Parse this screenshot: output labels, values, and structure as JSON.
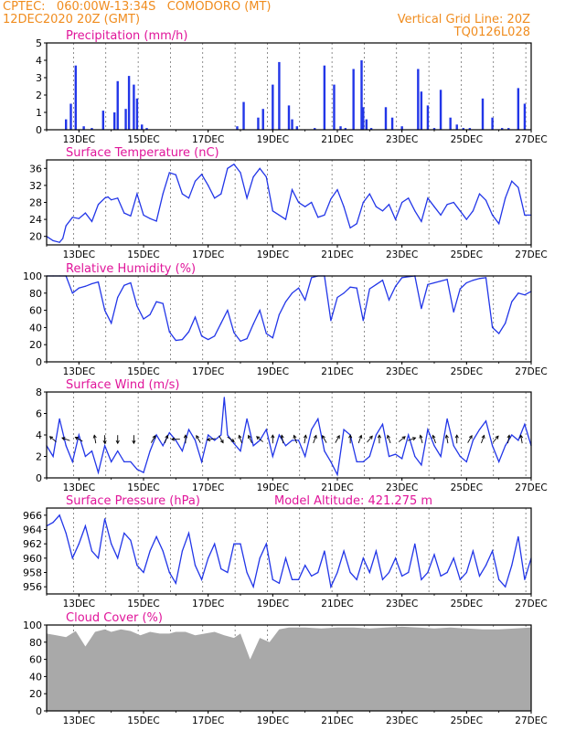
{
  "header": {
    "line1": "CPTEC:   060:00W-13:34S   COMODORO (MT)",
    "line2": "12DEC2020 20Z (GMT)",
    "right1": "Vertical Grid Line: 20Z",
    "right2": "TQ0126L028"
  },
  "colors": {
    "header": "#f08c1e",
    "title": "#e0159a",
    "series": "#2236e8",
    "cloud": "#a9a9a9",
    "axis": "#000000"
  },
  "chart_data": [
    {
      "type": "bar",
      "title": "Precipitation (mm/h)",
      "ylim": [
        0,
        5
      ],
      "yticks": [
        "0",
        "1",
        "2",
        "3",
        "4",
        "5"
      ],
      "xticks": [
        "13DEC",
        "15DEC",
        "17DEC",
        "19DEC",
        "21DEC",
        "23DEC",
        "25DEC",
        "27DEC"
      ],
      "x_unit": "day of Dec 2020 (20Z)",
      "x": [
        12.6,
        12.75,
        12.9,
        13.15,
        13.4,
        13.75,
        14.1,
        14.2,
        14.45,
        14.55,
        14.7,
        14.8,
        14.95,
        15.1,
        17.9,
        18.1,
        18.55,
        18.7,
        19.0,
        19.2,
        19.5,
        19.6,
        19.75,
        20.3,
        20.6,
        20.9,
        21.1,
        21.25,
        21.5,
        21.75,
        21.8,
        21.9,
        22.05,
        22.5,
        22.7,
        23.0,
        23.5,
        23.6,
        23.8,
        24.0,
        24.2,
        24.5,
        24.7,
        24.9,
        25.1,
        25.5,
        25.8,
        26.1,
        26.3,
        26.6,
        26.8
      ],
      "values": [
        0.6,
        1.5,
        3.7,
        0.2,
        0.1,
        1.1,
        1.0,
        2.8,
        1.2,
        3.1,
        2.6,
        1.8,
        0.3,
        0.1,
        0.2,
        1.6,
        0.7,
        1.2,
        2.6,
        3.9,
        1.4,
        0.6,
        0.2,
        0.1,
        3.7,
        2.6,
        0.2,
        0.1,
        3.5,
        4.0,
        1.3,
        0.6,
        0.1,
        1.3,
        0.7,
        0.2,
        3.5,
        2.2,
        1.4,
        0.1,
        2.3,
        0.7,
        0.3,
        0.1,
        0.1,
        1.8,
        0.7,
        0.1,
        0.1,
        2.4,
        1.5
      ]
    },
    {
      "type": "line",
      "title": "Surface Temperature (nC)",
      "ylim": [
        18,
        38
      ],
      "yticks": [
        "20",
        "24",
        "28",
        "32",
        "36"
      ],
      "xticks": [
        "13DEC",
        "15DEC",
        "17DEC",
        "19DEC",
        "21DEC",
        "23DEC",
        "25DEC",
        "27DEC"
      ],
      "x": [
        12.0,
        12.2,
        12.4,
        12.5,
        12.6,
        12.8,
        13.0,
        13.2,
        13.4,
        13.6,
        13.8,
        13.9,
        14.0,
        14.2,
        14.4,
        14.6,
        14.8,
        15.0,
        15.2,
        15.4,
        15.6,
        15.8,
        16.0,
        16.2,
        16.4,
        16.6,
        16.8,
        17.0,
        17.2,
        17.4,
        17.6,
        17.8,
        18.0,
        18.2,
        18.4,
        18.6,
        18.8,
        19.0,
        19.2,
        19.4,
        19.6,
        19.8,
        20.0,
        20.2,
        20.4,
        20.6,
        20.8,
        21.0,
        21.2,
        21.4,
        21.6,
        21.8,
        22.0,
        22.2,
        22.4,
        22.6,
        22.8,
        23.0,
        23.2,
        23.4,
        23.6,
        23.8,
        24.0,
        24.2,
        24.4,
        24.6,
        24.8,
        25.0,
        25.2,
        25.4,
        25.6,
        25.8,
        26.0,
        26.2,
        26.4,
        26.6,
        26.8,
        27.0
      ],
      "values": [
        20,
        19,
        18.6,
        19.5,
        22.5,
        24.5,
        24.2,
        25.5,
        23.5,
        27.5,
        29,
        29.3,
        28.6,
        29,
        25.5,
        24.8,
        30,
        25,
        24.2,
        23.6,
        30,
        35,
        34.5,
        30,
        29,
        33,
        34.6,
        32,
        29,
        30,
        36,
        37,
        35,
        29,
        34,
        36,
        34,
        26,
        25,
        24,
        31,
        28,
        27,
        28,
        24.5,
        25,
        28.8,
        31,
        27,
        22,
        23,
        28,
        30,
        27,
        26,
        27.5,
        24,
        28,
        29,
        26,
        23.5,
        29,
        27,
        25,
        27.5,
        28,
        26,
        24,
        26,
        30,
        28.5,
        25,
        23,
        29,
        33,
        31.5,
        25,
        25
      ]
    },
    {
      "type": "line",
      "title": "Relative Humidity (%)",
      "ylim": [
        0,
        100
      ],
      "yticks": [
        "0",
        "20",
        "40",
        "60",
        "80",
        "100"
      ],
      "xticks": [
        "13DEC",
        "15DEC",
        "17DEC",
        "19DEC",
        "21DEC",
        "23DEC",
        "25DEC",
        "27DEC"
      ],
      "x": [
        12.0,
        12.2,
        12.4,
        12.6,
        12.8,
        13.0,
        13.2,
        13.4,
        13.6,
        13.8,
        14.0,
        14.2,
        14.4,
        14.6,
        14.8,
        15.0,
        15.2,
        15.4,
        15.6,
        15.8,
        16.0,
        16.2,
        16.4,
        16.6,
        16.8,
        17.0,
        17.2,
        17.4,
        17.6,
        17.8,
        18.0,
        18.2,
        18.4,
        18.6,
        18.8,
        19.0,
        19.2,
        19.4,
        19.6,
        19.8,
        20.0,
        20.2,
        20.4,
        20.6,
        20.8,
        21.0,
        21.2,
        21.4,
        21.6,
        21.8,
        22.0,
        22.2,
        22.4,
        22.6,
        22.8,
        23.0,
        23.2,
        23.4,
        23.6,
        23.8,
        24.0,
        24.2,
        24.4,
        24.6,
        24.8,
        25.0,
        25.2,
        25.4,
        25.6,
        25.8,
        26.0,
        26.2,
        26.4,
        26.6,
        26.8,
        27.0
      ],
      "values": [
        100,
        100,
        100,
        100,
        80,
        86,
        88,
        91,
        93,
        60,
        45,
        75,
        89,
        92,
        65,
        50,
        55,
        70,
        68,
        35,
        25,
        26,
        35,
        52,
        30,
        26,
        30,
        45,
        60,
        34,
        24,
        27,
        44,
        60,
        33,
        28,
        55,
        70,
        80,
        86,
        72,
        98,
        100,
        100,
        48,
        75,
        80,
        87,
        86,
        48,
        85,
        90,
        95,
        72,
        88,
        98,
        99,
        100,
        62,
        90,
        92,
        94,
        96,
        58,
        85,
        92,
        95,
        97,
        98,
        40,
        33,
        45,
        70,
        80,
        78,
        82
      ]
    },
    {
      "type": "line",
      "title": "Surface Wind (m/s)",
      "ylim": [
        0,
        8
      ],
      "yticks": [
        "0",
        "2",
        "4",
        "6",
        "8"
      ],
      "xticks": [
        "13DEC",
        "15DEC",
        "17DEC",
        "19DEC",
        "21DEC",
        "23DEC",
        "25DEC",
        "27DEC"
      ],
      "x": [
        12.0,
        12.2,
        12.4,
        12.6,
        12.8,
        13.0,
        13.2,
        13.4,
        13.6,
        13.8,
        14.0,
        14.2,
        14.4,
        14.6,
        14.8,
        15.0,
        15.2,
        15.4,
        15.6,
        15.8,
        16.0,
        16.2,
        16.4,
        16.6,
        16.8,
        17.0,
        17.2,
        17.4,
        17.5,
        17.6,
        17.8,
        18.0,
        18.2,
        18.4,
        18.6,
        18.8,
        19.0,
        19.2,
        19.4,
        19.6,
        19.8,
        20.0,
        20.2,
        20.4,
        20.6,
        20.8,
        21.0,
        21.2,
        21.4,
        21.6,
        21.8,
        22.0,
        22.2,
        22.4,
        22.6,
        22.8,
        23.0,
        23.2,
        23.4,
        23.6,
        23.8,
        24.0,
        24.2,
        24.4,
        24.6,
        24.8,
        25.0,
        25.2,
        25.4,
        25.6,
        25.8,
        26.0,
        26.2,
        26.4,
        26.6,
        26.8,
        27.0
      ],
      "values": [
        3,
        2,
        5.5,
        3,
        1.5,
        4,
        2,
        2.5,
        0.5,
        3,
        1.5,
        2.5,
        1.5,
        1.5,
        0.8,
        0.5,
        2.5,
        4,
        3,
        4.2,
        3.5,
        2.5,
        4.5,
        3.5,
        1.5,
        4,
        3.5,
        4,
        7.5,
        4,
        3.2,
        2.5,
        5.5,
        3,
        3.5,
        4.5,
        2,
        4,
        3,
        3.5,
        3.5,
        2,
        4.5,
        5.5,
        2.5,
        1.5,
        0.3,
        4.5,
        4,
        1.5,
        1.5,
        2,
        4,
        5,
        2,
        2.2,
        1.8,
        4,
        2,
        1.2,
        4.5,
        3,
        2,
        5.5,
        3,
        2,
        1.5,
        3.5,
        4.5,
        5.3,
        3,
        1.5,
        3,
        4,
        3.5,
        5,
        3
      ]
    },
    {
      "type": "line",
      "title": "Surface Pressure (hPa)",
      "subtitle": "Model Altitude: 421.275 m",
      "ylim": [
        955,
        967
      ],
      "yticks": [
        "956",
        "958",
        "960",
        "962",
        "964",
        "966"
      ],
      "xticks": [
        "13DEC",
        "15DEC",
        "17DEC",
        "19DEC",
        "21DEC",
        "23DEC",
        "25DEC",
        "27DEC"
      ],
      "x": [
        12.0,
        12.2,
        12.4,
        12.6,
        12.8,
        13.0,
        13.2,
        13.4,
        13.6,
        13.8,
        14.0,
        14.2,
        14.4,
        14.6,
        14.8,
        15.0,
        15.2,
        15.4,
        15.6,
        15.8,
        16.0,
        16.2,
        16.4,
        16.6,
        16.8,
        17.0,
        17.2,
        17.4,
        17.6,
        17.8,
        18.0,
        18.2,
        18.4,
        18.6,
        18.8,
        19.0,
        19.2,
        19.4,
        19.6,
        19.8,
        20.0,
        20.2,
        20.4,
        20.6,
        20.8,
        21.0,
        21.2,
        21.4,
        21.6,
        21.8,
        22.0,
        22.2,
        22.4,
        22.6,
        22.8,
        23.0,
        23.2,
        23.4,
        23.6,
        23.8,
        24.0,
        24.2,
        24.4,
        24.6,
        24.8,
        25.0,
        25.2,
        25.4,
        25.6,
        25.8,
        26.0,
        26.2,
        26.4,
        26.6,
        26.8,
        27.0
      ],
      "values": [
        964.5,
        965,
        966,
        963.5,
        960,
        962,
        964.5,
        961,
        960,
        965.5,
        962,
        960,
        963.5,
        962.5,
        959,
        958,
        961,
        963,
        961,
        958,
        956.5,
        961,
        963.5,
        959,
        957,
        960,
        962,
        958.5,
        958,
        962,
        962,
        958,
        956,
        960,
        962,
        957,
        956.5,
        960,
        957,
        957,
        959,
        957.5,
        958,
        961,
        956,
        958,
        961,
        958,
        957,
        960,
        958,
        961,
        957,
        958,
        960,
        957.5,
        958,
        962,
        957,
        958,
        960.5,
        957.5,
        958,
        960,
        957,
        958,
        961,
        957.5,
        959,
        961,
        957,
        956,
        959,
        963,
        957,
        960
      ]
    },
    {
      "type": "area",
      "title": "Cloud Cover (%)",
      "ylim": [
        0,
        100
      ],
      "yticks": [
        "0",
        "20",
        "40",
        "60",
        "80",
        "100"
      ],
      "xticks": [
        "13DEC",
        "15DEC",
        "17DEC",
        "19DEC",
        "21DEC",
        "23DEC",
        "25DEC",
        "27DEC"
      ],
      "x": [
        12.0,
        12.3,
        12.6,
        12.9,
        13.2,
        13.5,
        13.8,
        14.0,
        14.3,
        14.6,
        14.9,
        15.2,
        15.5,
        15.8,
        16.0,
        16.3,
        16.6,
        16.9,
        17.2,
        17.5,
        17.8,
        18.0,
        18.3,
        18.6,
        18.9,
        19.2,
        19.5,
        20.0,
        20.5,
        21.0,
        21.5,
        22.0,
        22.5,
        23.0,
        23.5,
        24.0,
        24.5,
        25.0,
        25.5,
        26.0,
        26.5,
        27.0
      ],
      "values": [
        90,
        88,
        86,
        93,
        75,
        92,
        95,
        92,
        95,
        93,
        88,
        92,
        90,
        90,
        92,
        92,
        88,
        90,
        92,
        88,
        85,
        90,
        60,
        85,
        80,
        95,
        97,
        97,
        96,
        97,
        97,
        96,
        97,
        98,
        97,
        96,
        97,
        96,
        95,
        95,
        96,
        97
      ]
    }
  ]
}
